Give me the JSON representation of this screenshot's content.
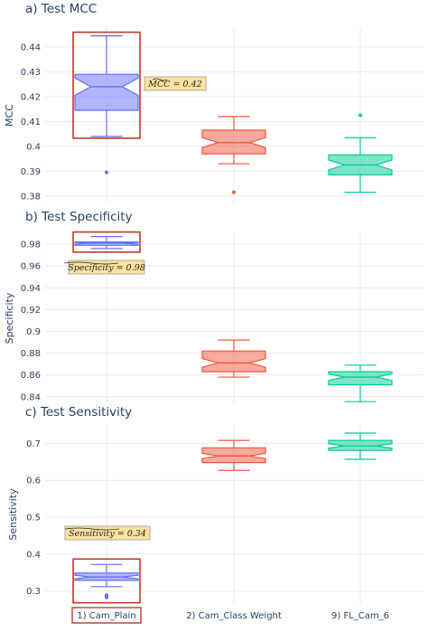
{
  "chart_data": [
    {
      "type": "box",
      "title": "a) Test MCC",
      "ylabel": "MCC",
      "ylim": [
        0.377,
        0.448
      ],
      "yticks": [
        0.38,
        0.39,
        0.4,
        0.41,
        0.42,
        0.43,
        0.44
      ],
      "ytick_labels": [
        "0.38",
        "0.39",
        "0.4",
        "0.41",
        "0.42",
        "0.43",
        "0.44"
      ],
      "categories": [
        "1) Cam_Plain",
        "2) Cam_Class Weight",
        "9) FL_Cam_6"
      ],
      "boxes": [
        {
          "category": "1) Cam_Plain",
          "min": 0.404,
          "q1": 0.4145,
          "median": 0.424,
          "q3": 0.429,
          "max": 0.4445,
          "notch_low": 0.4205,
          "notch_high": 0.4275,
          "outliers": [
            0.3895
          ],
          "color": "#636efa",
          "highlighted": true
        },
        {
          "category": "2) Cam_Class Weight",
          "min": 0.393,
          "q1": 0.397,
          "median": 0.4015,
          "q3": 0.4065,
          "max": 0.412,
          "notch_low": 0.3995,
          "notch_high": 0.4035,
          "outliers": [
            0.3815
          ],
          "color": "#ef553b",
          "highlighted": false
        },
        {
          "category": "9) FL_Cam_6",
          "min": 0.3815,
          "q1": 0.3885,
          "median": 0.3925,
          "q3": 0.3965,
          "max": 0.4035,
          "notch_low": 0.3905,
          "notch_high": 0.3945,
          "outliers": [
            0.4125
          ],
          "color": "#00cc96",
          "highlighted": false
        }
      ],
      "annotation": {
        "text": "MCC = 0.42",
        "accent": "MCC"
      }
    },
    {
      "type": "box",
      "title": "b) Test Specificity",
      "ylabel": "Specificity",
      "ylim": [
        0.834,
        0.99
      ],
      "yticks": [
        0.84,
        0.86,
        0.88,
        0.9,
        0.92,
        0.94,
        0.96,
        0.98
      ],
      "ytick_labels": [
        "0.84",
        "0.86",
        "0.88",
        "0.9",
        "0.92",
        "0.94",
        "0.96",
        "0.98"
      ],
      "categories": [
        "1) Cam_Plain",
        "2) Cam_Class Weight",
        "9) FL_Cam_6"
      ],
      "boxes": [
        {
          "category": "1) Cam_Plain",
          "min": 0.976,
          "q1": 0.979,
          "median": 0.981,
          "q3": 0.982,
          "max": 0.987,
          "notch_low": 0.98,
          "notch_high": 0.9815,
          "outliers": [],
          "color": "#636efa",
          "highlighted": true
        },
        {
          "category": "2) Cam_Class Weight",
          "min": 0.858,
          "q1": 0.863,
          "median": 0.871,
          "q3": 0.882,
          "max": 0.892,
          "notch_low": 0.867,
          "notch_high": 0.875,
          "outliers": [],
          "color": "#ef553b",
          "highlighted": false
        },
        {
          "category": "9) FL_Cam_6",
          "min": 0.8355,
          "q1": 0.851,
          "median": 0.858,
          "q3": 0.863,
          "max": 0.869,
          "notch_low": 0.855,
          "notch_high": 0.861,
          "outliers": [],
          "color": "#00cc96",
          "highlighted": false
        }
      ],
      "annotation": {
        "text": "Specificity = 0.98",
        "accent": "Specificity"
      }
    },
    {
      "type": "box",
      "title": "c) Test Sensitivity",
      "ylabel": "Sensitivity",
      "ylim": [
        0.265,
        0.75
      ],
      "yticks": [
        0.3,
        0.4,
        0.5,
        0.6,
        0.7
      ],
      "ytick_labels": [
        "0.3",
        "0.4",
        "0.5",
        "0.6",
        "0.7"
      ],
      "categories": [
        "1) Cam_Plain",
        "2) Cam_Class Weight",
        "9) FL_Cam_6"
      ],
      "boxes": [
        {
          "category": "1) Cam_Plain",
          "min": 0.312,
          "q1": 0.329,
          "median": 0.338,
          "q3": 0.349,
          "max": 0.372,
          "notch_low": 0.333,
          "notch_high": 0.343,
          "outliers": [
            0.289,
            0.283
          ],
          "color": "#636efa",
          "highlighted": true
        },
        {
          "category": "2) Cam_Class Weight",
          "min": 0.627,
          "q1": 0.648,
          "median": 0.666,
          "q3": 0.688,
          "max": 0.708,
          "notch_low": 0.659,
          "notch_high": 0.673,
          "outliers": [],
          "color": "#ef553b",
          "highlighted": false
        },
        {
          "category": "9) FL_Cam_6",
          "min": 0.657,
          "q1": 0.681,
          "median": 0.693,
          "q3": 0.708,
          "max": 0.728,
          "notch_low": 0.687,
          "notch_high": 0.699,
          "outliers": [],
          "color": "#00cc96",
          "highlighted": false
        }
      ],
      "annotation": {
        "text": "Sensitivity = 0.34",
        "accent": "Sensitivity"
      }
    }
  ],
  "colors": {
    "grid": "#e9ecf1",
    "axis_text": "#2a3f5f",
    "highlight_frame": "#c0392b",
    "annotation_fill": "#fbe3a0",
    "annotation_border": "#999999"
  }
}
